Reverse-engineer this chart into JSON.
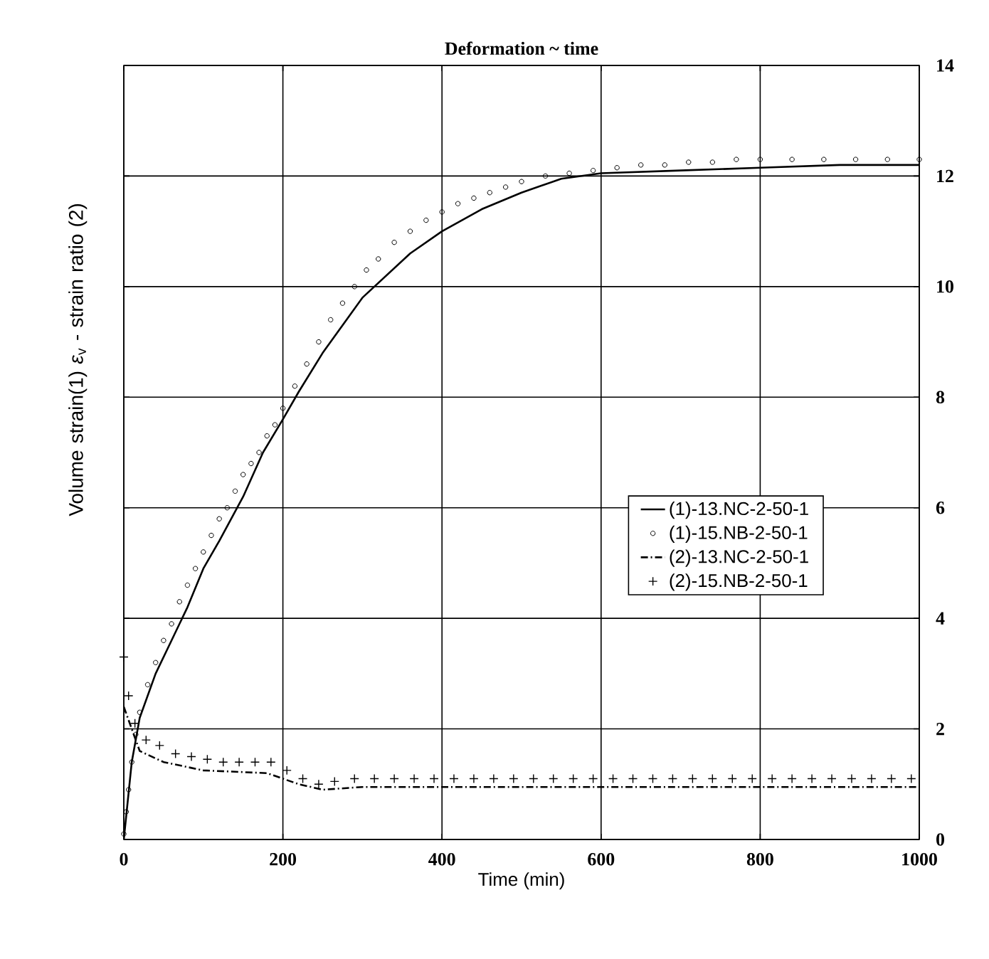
{
  "chart_data": {
    "type": "line",
    "title": "Deformation ~ time",
    "xlabel": "Time (min)",
    "ylabel": "Volume strain(1) *ε*$_{v}$ - strain ratio (2)",
    "xlim": [
      0,
      1000
    ],
    "xticks": [
      0,
      200,
      400,
      600,
      800,
      1000
    ],
    "ylim": [
      0,
      14
    ],
    "yticks": [
      0,
      2,
      4,
      6,
      8,
      10,
      12,
      14
    ],
    "grid": true,
    "legend": "right",
    "tick_labels": "xy",
    "series": [
      {
        "name": "(1)-13.NC-2-50-1",
        "line_style": "solid",
        "marker": "none",
        "color": "#000000",
        "x": [
          0,
          5,
          10,
          20,
          40,
          60,
          80,
          100,
          120,
          150,
          175,
          200,
          220,
          250,
          280,
          300,
          330,
          360,
          400,
          450,
          500,
          550,
          600,
          700,
          800,
          900,
          1000
        ],
        "values": [
          0,
          0.7,
          1.4,
          2.2,
          3.0,
          3.6,
          4.2,
          4.9,
          5.4,
          6.2,
          7.0,
          7.6,
          8.1,
          8.8,
          9.4,
          9.8,
          10.2,
          10.6,
          11.0,
          11.4,
          11.7,
          11.95,
          12.05,
          12.1,
          12.15,
          12.2,
          12.2
        ]
      },
      {
        "name": "(1)-15.NB-2-50-1",
        "type": "scatter",
        "marker": "circle",
        "color": "#000000",
        "x": [
          0,
          3,
          6,
          10,
          15,
          20,
          30,
          40,
          50,
          60,
          70,
          80,
          90,
          100,
          110,
          120,
          130,
          140,
          150,
          160,
          170,
          180,
          190,
          200,
          215,
          230,
          245,
          260,
          275,
          290,
          305,
          320,
          340,
          360,
          380,
          400,
          420,
          440,
          460,
          480,
          500,
          530,
          560,
          590,
          620,
          650,
          680,
          710,
          740,
          770,
          800,
          840,
          880,
          920,
          960,
          1000
        ],
        "values": [
          0.1,
          0.5,
          0.9,
          1.4,
          1.9,
          2.3,
          2.8,
          3.2,
          3.6,
          3.9,
          4.3,
          4.6,
          4.9,
          5.2,
          5.5,
          5.8,
          6.0,
          6.3,
          6.6,
          6.8,
          7.0,
          7.3,
          7.5,
          7.8,
          8.2,
          8.6,
          9.0,
          9.4,
          9.7,
          10.0,
          10.3,
          10.5,
          10.8,
          11.0,
          11.2,
          11.35,
          11.5,
          11.6,
          11.7,
          11.8,
          11.9,
          12.0,
          12.05,
          12.1,
          12.15,
          12.2,
          12.2,
          12.25,
          12.25,
          12.3,
          12.3,
          12.3,
          12.3,
          12.3,
          12.3,
          12.3
        ]
      },
      {
        "name": "(2)-13.NC-2-50-1",
        "line_style": "dashed",
        "marker": "none",
        "color": "#000000",
        "x": [
          0,
          20,
          50,
          100,
          180,
          220,
          250,
          300,
          400,
          500,
          600,
          700,
          800,
          900,
          1000
        ],
        "values": [
          2.4,
          1.6,
          1.4,
          1.25,
          1.2,
          1.0,
          0.9,
          0.95,
          0.95,
          0.95,
          0.95,
          0.95,
          0.95,
          0.95,
          0.95
        ]
      },
      {
        "name": "(2)-15.NB-2-50-1",
        "type": "scatter",
        "marker": "cross",
        "color": "#000000",
        "x": [
          0,
          6,
          14,
          28,
          45,
          65,
          85,
          105,
          125,
          145,
          165,
          185,
          205,
          225,
          245,
          265,
          290,
          315,
          340,
          365,
          390,
          415,
          440,
          465,
          490,
          515,
          540,
          565,
          590,
          615,
          640,
          665,
          690,
          715,
          740,
          765,
          790,
          815,
          840,
          865,
          890,
          915,
          940,
          965,
          990
        ],
        "values": [
          3.3,
          2.6,
          2.1,
          1.8,
          1.7,
          1.55,
          1.5,
          1.45,
          1.4,
          1.4,
          1.4,
          1.4,
          1.25,
          1.1,
          1.0,
          1.05,
          1.1,
          1.1,
          1.1,
          1.1,
          1.1,
          1.1,
          1.1,
          1.1,
          1.1,
          1.1,
          1.1,
          1.1,
          1.1,
          1.1,
          1.1,
          1.1,
          1.1,
          1.1,
          1.1,
          1.1,
          1.1,
          1.1,
          1.1,
          1.1,
          1.1,
          1.1,
          1.1,
          1.1,
          1.1
        ]
      }
    ]
  }
}
